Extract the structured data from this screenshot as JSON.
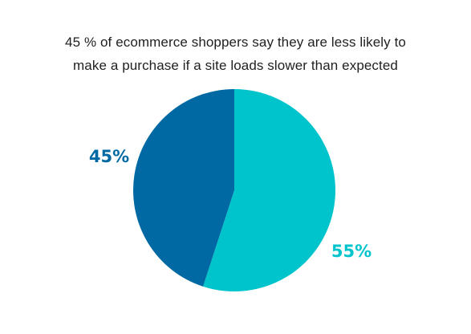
{
  "chart_data": {
    "type": "pie",
    "title_lines": [
      "45 % of ecommerce shoppers say they are less likely to",
      "make a purchase if a site loads slower than expected"
    ],
    "slices": [
      {
        "value": 55,
        "label": "55%",
        "color": "#00c4cc"
      },
      {
        "value": 45,
        "label": "45%",
        "color": "#0069a3"
      }
    ],
    "start": "12 o'clock",
    "direction": "clockwise"
  }
}
